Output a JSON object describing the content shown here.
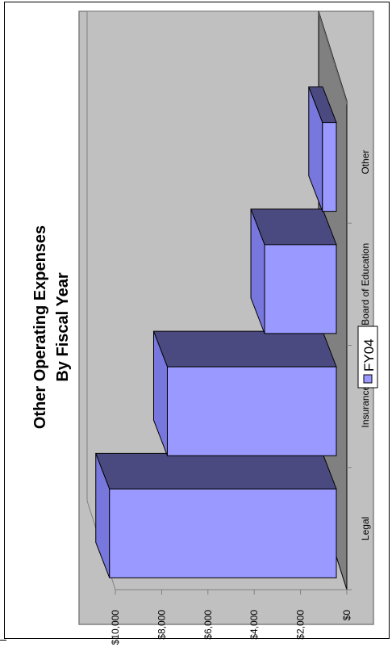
{
  "chart_data": {
    "type": "bar",
    "title_line1": "Other Operating Expenses",
    "title_line2": "By Fiscal Year",
    "categories": [
      "Legal",
      "Insurance",
      "Board of Education",
      "Other"
    ],
    "series": [
      {
        "name": "FY04",
        "values": [
          9800,
          7300,
          3100,
          600
        ]
      }
    ],
    "y_ticks": [
      "$0",
      "$2,000",
      "$4,000",
      "$6,000",
      "$8,000",
      "$10,000"
    ],
    "ylim": [
      0,
      10000
    ],
    "legend": "bottom",
    "orientation": "rotated 90° counter-clockwise",
    "colors": {
      "plot_area": "#c0c0c0",
      "floor": "#808080",
      "bar_front": "#9999ff",
      "bar_top": "#4a4a80",
      "bar_side": "#7777dd"
    }
  }
}
